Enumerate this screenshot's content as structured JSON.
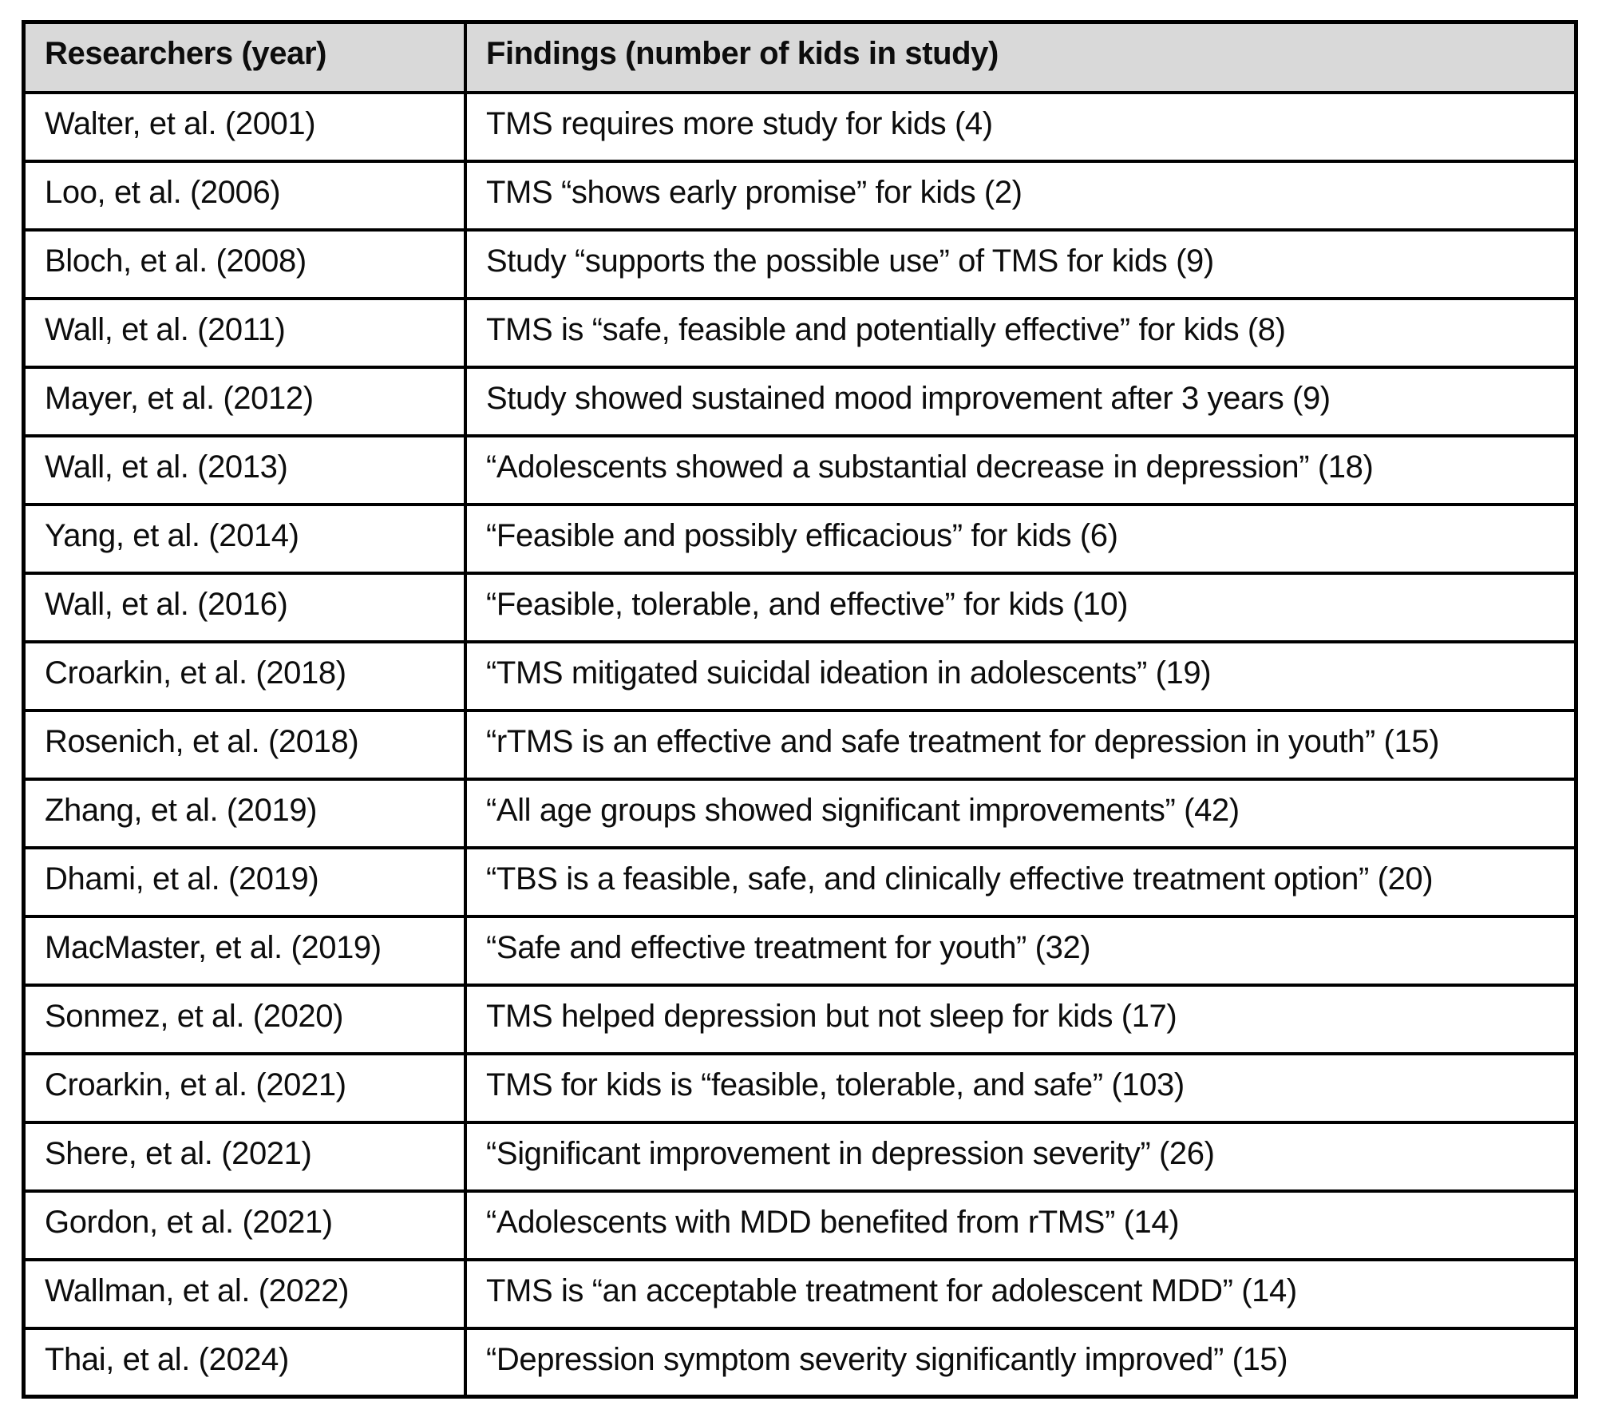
{
  "table": {
    "columns": [
      "Researchers (year)",
      "Findings (number of kids in study)"
    ],
    "rows": [
      {
        "researchers": "Walter, et al. (2001)",
        "findings": "TMS requires more study for kids (4)"
      },
      {
        "researchers": "Loo, et al. (2006)",
        "findings": "TMS “shows early promise” for kids (2)"
      },
      {
        "researchers": "Bloch, et al. (2008)",
        "findings": "Study “supports the possible use” of TMS for kids (9)"
      },
      {
        "researchers": "Wall, et al. (2011)",
        "findings": "TMS is “safe, feasible and potentially effective” for kids (8)"
      },
      {
        "researchers": "Mayer, et al. (2012)",
        "findings": "Study showed sustained mood improvement after 3 years (9)"
      },
      {
        "researchers": "Wall, et al. (2013)",
        "findings": "“Adolescents showed a substantial decrease in depression” (18)"
      },
      {
        "researchers": "Yang, et al. (2014)",
        "findings": "“Feasible and possibly efficacious” for kids (6)"
      },
      {
        "researchers": "Wall, et al. (2016)",
        "findings": "“Feasible, tolerable, and effective” for kids (10)"
      },
      {
        "researchers": "Croarkin, et al. (2018)",
        "findings": "“TMS mitigated suicidal ideation in adolescents” (19)"
      },
      {
        "researchers": "Rosenich, et al. (2018)",
        "findings": "“rTMS is an effective and safe treatment for depression in youth” (15)"
      },
      {
        "researchers": "Zhang, et al. (2019)",
        "findings": "“All age groups showed significant improvements” (42)"
      },
      {
        "researchers": "Dhami, et al. (2019)",
        "findings": "“TBS is a feasible, safe, and clinically effective treatment option” (20)"
      },
      {
        "researchers": "MacMaster, et al. (2019)",
        "findings": "“Safe and effective treatment for youth” (32)"
      },
      {
        "researchers": "Sonmez, et al. (2020)",
        "findings": "TMS helped depression but not sleep for kids (17)"
      },
      {
        "researchers": "Croarkin, et al. (2021)",
        "findings": "TMS for kids is “feasible, tolerable, and safe” (103)"
      },
      {
        "researchers": "Shere, et al. (2021)",
        "findings": "“Significant improvement in depression severity” (26)"
      },
      {
        "researchers": "Gordon, et al. (2021)",
        "findings": "“Adolescents with MDD benefited from rTMS” (14)"
      },
      {
        "researchers": "Wallman, et al. (2022)",
        "findings": "TMS is “an acceptable treatment for adolescent MDD” (14)"
      },
      {
        "researchers": "Thai, et al. (2024)",
        "findings": "“Depression symptom severity significantly improved” (15)"
      }
    ]
  },
  "colors": {
    "header_bg": "#d9d9d9",
    "border": "#000000",
    "text": "#0d0d0d",
    "page_bg": "#ffffff"
  }
}
